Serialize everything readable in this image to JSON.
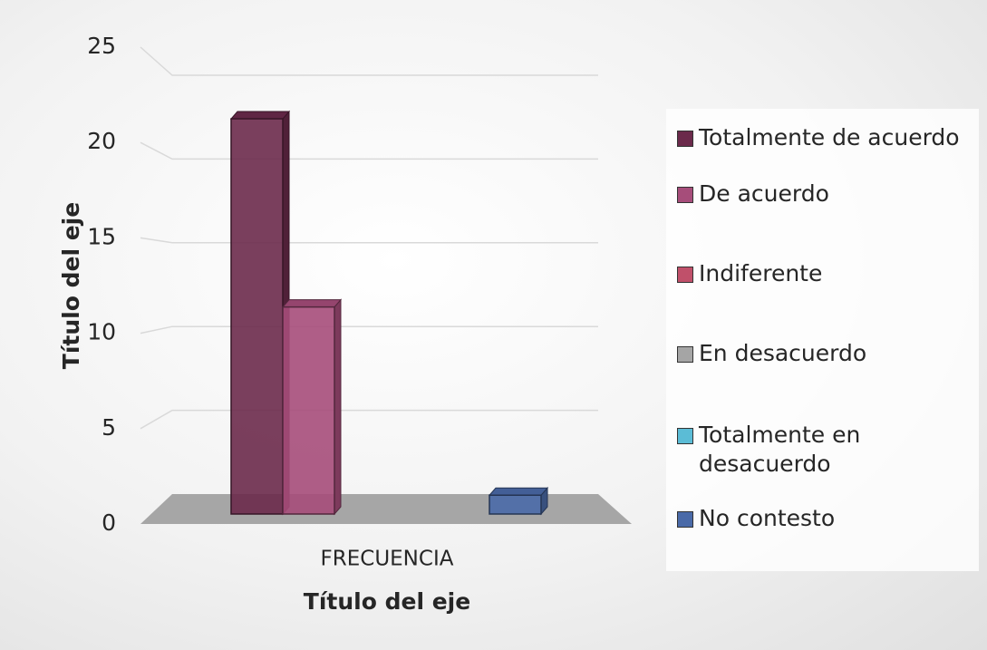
{
  "chart_data": {
    "type": "bar3d",
    "categories": [
      "FRECUENCIA"
    ],
    "series": [
      {
        "name": "Totalmente de acuerdo",
        "color": "#6b2a4b",
        "values": [
          21
        ]
      },
      {
        "name": "De acuerdo",
        "color": "#a64d7a",
        "values": [
          11
        ]
      },
      {
        "name": "Indiferente",
        "color": "#c0506a",
        "values": [
          0
        ]
      },
      {
        "name": "En desacuerdo",
        "color": "#a5a5a5",
        "values": [
          0
        ]
      },
      {
        "name": "Totalmente en desacuerdo",
        "color": "#5bbcd6",
        "values": [
          0
        ]
      },
      {
        "name": "No contesto",
        "color": "#4a6aa8",
        "values": [
          1
        ]
      }
    ],
    "x_label": "Título del eje",
    "y_label": "Título del eje",
    "ylim": [
      0,
      25
    ],
    "yticks": [
      0,
      5,
      10,
      15,
      20,
      25
    ],
    "grid": true,
    "legend": "right"
  }
}
